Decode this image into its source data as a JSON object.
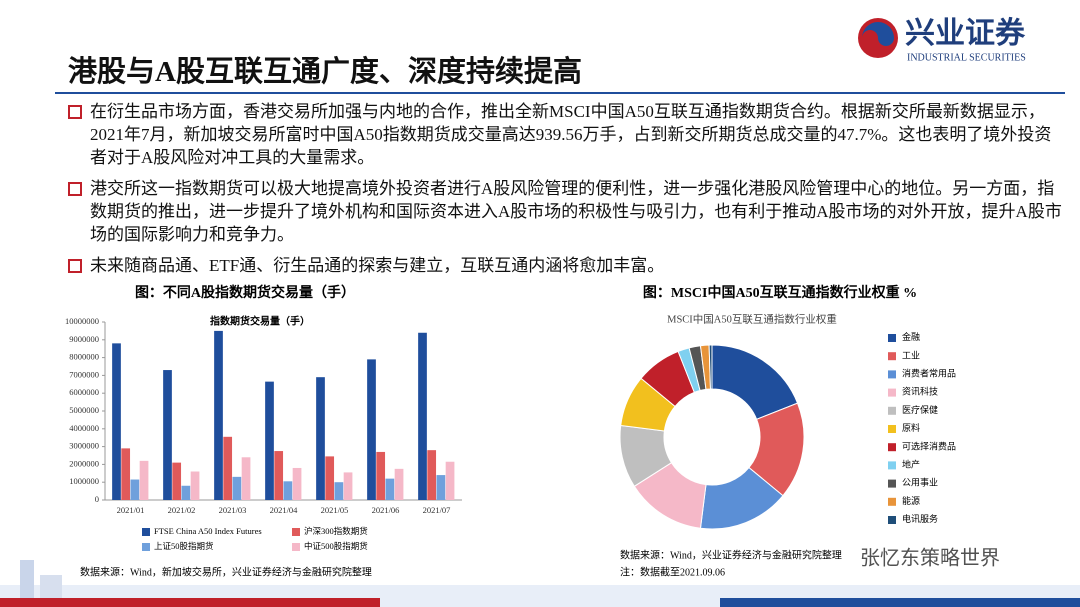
{
  "header": {
    "title": "港股与A股互联互通广度、深度持续提高",
    "logo": "兴业证券",
    "logo_en": "INDUSTRIAL SECURITIES"
  },
  "bullets": [
    "在衍生品市场方面，香港交易所加强与内地的合作，推出全新MSCI中国A50互联互通指数期货合约。根据新交所最新数据显示，2021年7月，新加坡交易所富时中国A50指数期货成交量高达939.56万手，占到新交所期货总成交量的47.7%。这也表明了境外投资者对于A股风险对冲工具的大量需求。",
    "港交所这一指数期货可以极大地提高境外投资者进行A股风险管理的便利性，进一步强化港股风险管理中心的地位。另一方面，指数期货的推出，进一步提升了境外机构和国际资本进入A股市场的积极性与吸引力，也有利于推动A股市场的对外开放，提升A股市场的国际影响力和竞争力。",
    "未来随商品通、ETF通、衍生品通的探索与建立，互联互通内涵将愈加丰富。"
  ],
  "watermark": "张忆东策略世界",
  "chart_data": [
    {
      "type": "bar",
      "caption": "图：不同A股指数期货交易量（手）",
      "title": "指数期货交易量（手）",
      "categories": [
        "2021/01",
        "2021/02",
        "2021/03",
        "2021/04",
        "2021/05",
        "2021/06",
        "2021/07"
      ],
      "series": [
        {
          "name": "FTSE China A50 Index Futures",
          "color": "#1f4e9c",
          "values": [
            8800000,
            7300000,
            9500000,
            6650000,
            6900000,
            7900000,
            9395600
          ]
        },
        {
          "name": "沪深300指数期货",
          "color": "#e05a5a",
          "values": [
            2900000,
            2100000,
            3550000,
            2750000,
            2450000,
            2700000,
            2800000
          ]
        },
        {
          "name": "上证50股指期货",
          "color": "#6fa0dc",
          "values": [
            1150000,
            800000,
            1300000,
            1050000,
            1000000,
            1200000,
            1400000
          ]
        },
        {
          "name": "中证500股指期货",
          "color": "#f5b8c8",
          "values": [
            2200000,
            1600000,
            2400000,
            1800000,
            1550000,
            1750000,
            2150000
          ]
        }
      ],
      "ylim": [
        0,
        10000000
      ],
      "yticks": [
        0,
        1000000,
        2000000,
        3000000,
        4000000,
        5000000,
        6000000,
        7000000,
        8000000,
        9000000,
        10000000
      ],
      "source": "数据来源：Wind，新加坡交易所，兴业证券经济与金融研究院整理"
    },
    {
      "type": "pie",
      "caption": "图：MSCI中国A50互联互通指数行业权重 %",
      "title": "MSCI中国A50互联互通指数行业权重",
      "categories": [
        "金融",
        "工业",
        "消费者常用品",
        "资讯科技",
        "医疗保健",
        "原料",
        "可选择消费品",
        "地产",
        "公用事业",
        "能源",
        "电讯服务"
      ],
      "values": [
        19,
        17,
        16,
        14,
        11,
        9,
        8,
        2,
        2,
        1.5,
        0.5
      ],
      "colors": [
        "#1f4e9c",
        "#e05a5a",
        "#5b8fd6",
        "#f5b8c8",
        "#bfbfbf",
        "#f2c01e",
        "#c0202a",
        "#7fd0f0",
        "#555555",
        "#e8943a",
        "#1f4e79"
      ],
      "source": "数据来源：Wind，兴业证券经济与金融研究院整理",
      "note": "注：数据截至2021.09.06"
    }
  ]
}
